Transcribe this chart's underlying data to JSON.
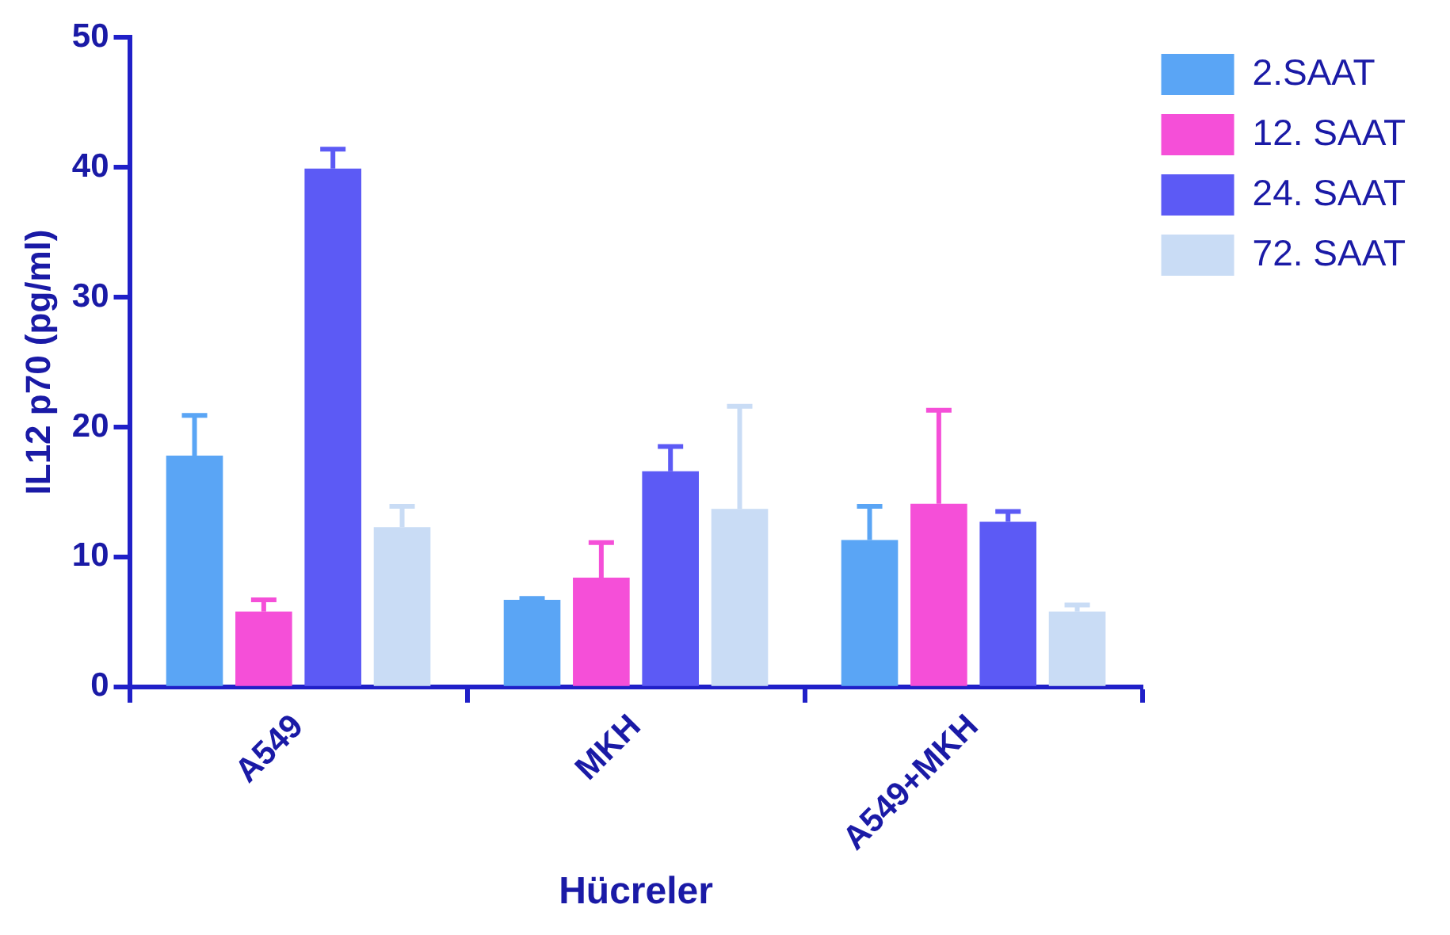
{
  "chart_data": {
    "type": "bar",
    "xlabel": "Hücreler",
    "ylabel": "IL12 p70 (pg/ml)",
    "categories": [
      "A549",
      "MKH",
      "A549+MKH"
    ],
    "series": [
      {
        "name": "2.SAAT",
        "color": "#5aa5f5",
        "values": [
          17.8,
          6.7,
          11.3
        ],
        "errors": [
          [
            17.8,
            20.9
          ],
          [
            6.7,
            6.8
          ],
          [
            11.3,
            13.9
          ]
        ]
      },
      {
        "name": "12. SAAT",
        "color": "#f54fd8",
        "values": [
          5.8,
          8.4,
          14.1
        ],
        "errors": [
          [
            5.8,
            6.7
          ],
          [
            8.4,
            11.1
          ],
          [
            14.1,
            21.3
          ]
        ]
      },
      {
        "name": "24. SAAT",
        "color": "#5c5af5",
        "values": [
          39.9,
          16.6,
          12.7
        ],
        "errors": [
          [
            39.9,
            41.4
          ],
          [
            16.6,
            18.5
          ],
          [
            12.7,
            13.5
          ]
        ]
      },
      {
        "name": "72. SAAT",
        "color": "#c9dcf5",
        "values": [
          12.3,
          13.7,
          5.8
        ],
        "errors": [
          [
            12.3,
            13.9
          ],
          [
            13.7,
            21.6
          ],
          [
            5.8,
            6.3
          ]
        ]
      }
    ],
    "ylim": [
      0,
      50
    ],
    "yticks": [
      0,
      10,
      20,
      30,
      40,
      50
    ],
    "grid": false,
    "legend": "top right"
  }
}
